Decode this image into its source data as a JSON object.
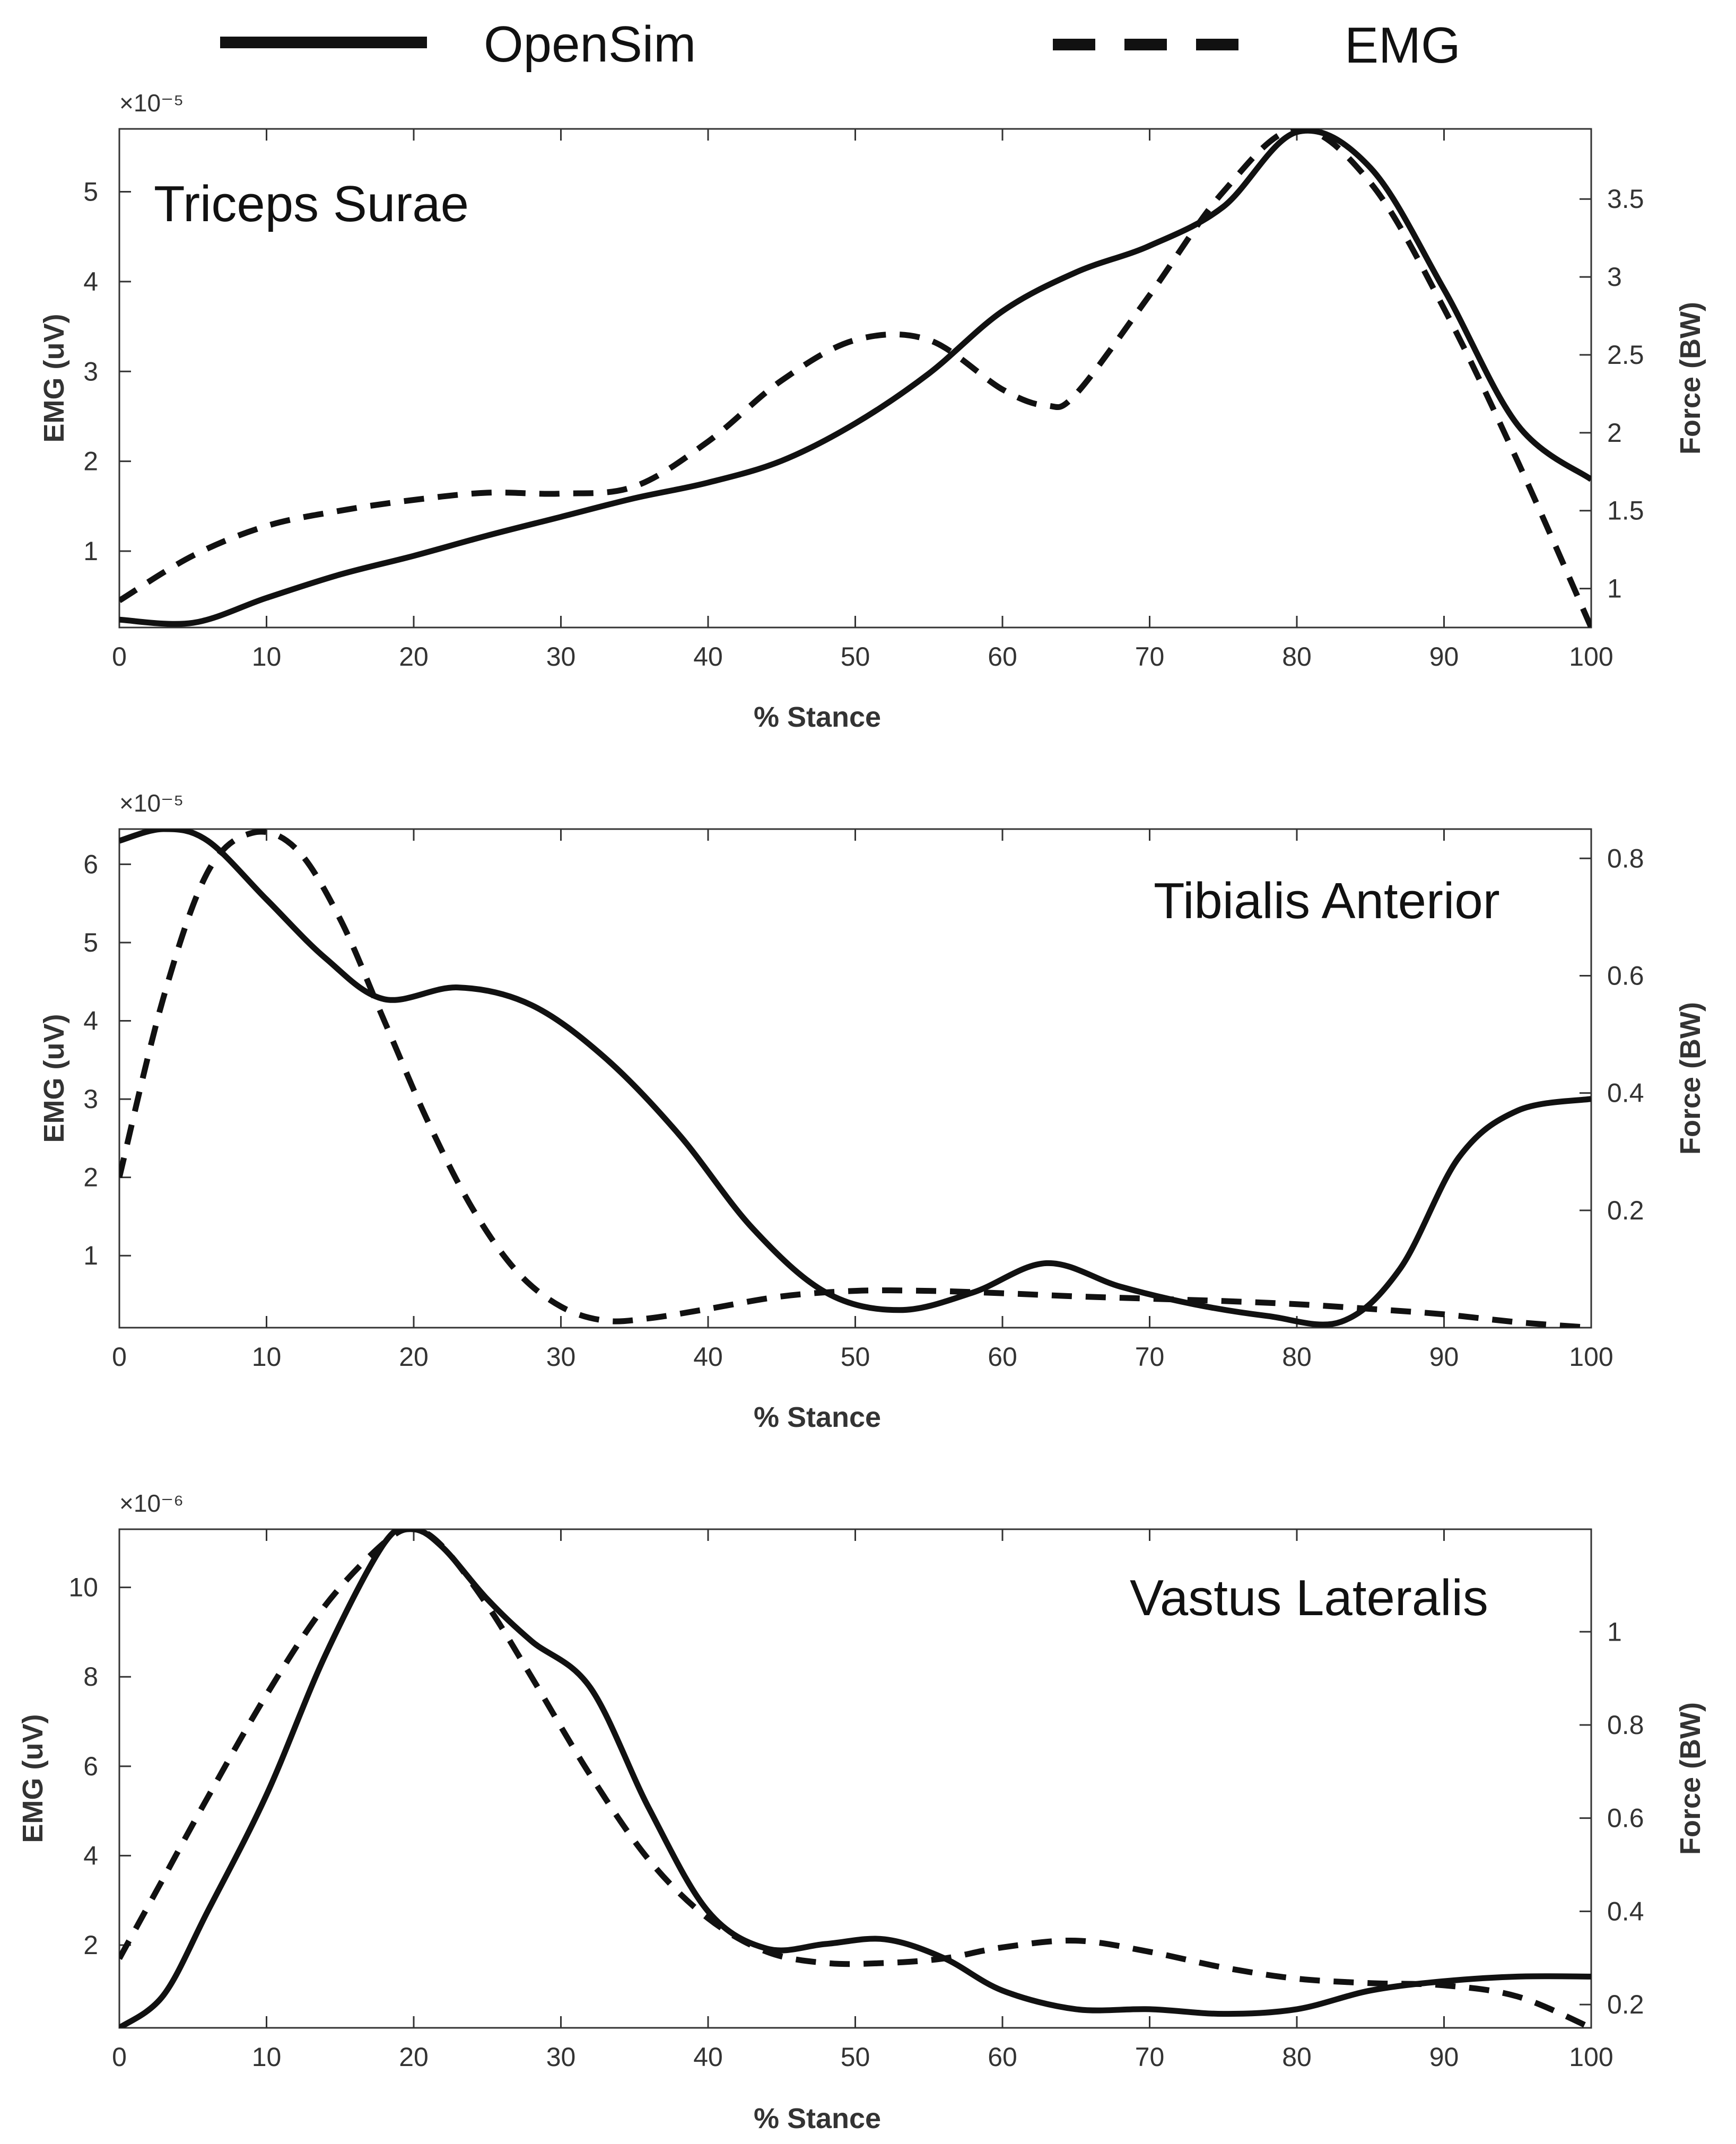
{
  "legend": [
    {
      "label": "OpenSim",
      "style": "solid"
    },
    {
      "label": "EMG",
      "style": "dashed"
    }
  ],
  "colors": {
    "line": "#111111",
    "axis": "#333333",
    "background": "#ffffff"
  },
  "chart_data": [
    {
      "type": "line",
      "title": "Triceps Surae",
      "xlabel": "% Stance",
      "ylabel": "EMG (uV)",
      "y2label": "Force (BW)",
      "exponent": "×10⁻⁵",
      "xlim": [
        0,
        100
      ],
      "ylim": [
        0.15,
        5.7
      ],
      "y2lim": [
        0.75,
        3.95
      ],
      "xticks": [
        0,
        10,
        20,
        30,
        40,
        50,
        60,
        70,
        80,
        90,
        100
      ],
      "yticks": [
        1,
        2,
        3,
        4,
        5
      ],
      "y2ticks": [
        1,
        1.5,
        2,
        2.5,
        3,
        3.5
      ],
      "series": [
        {
          "name": "OpenSim",
          "axis": "right",
          "style": "solid",
          "x": [
            0,
            5,
            10,
            15,
            20,
            25,
            30,
            35,
            40,
            45,
            50,
            55,
            60,
            65,
            70,
            75,
            80,
            85,
            90,
            95,
            100
          ],
          "y": [
            0.8,
            0.78,
            0.94,
            1.09,
            1.21,
            1.34,
            1.46,
            1.58,
            1.68,
            1.82,
            2.06,
            2.38,
            2.78,
            3.03,
            3.2,
            3.45,
            3.93,
            3.7,
            2.92,
            2.05,
            1.7
          ]
        },
        {
          "name": "EMG",
          "axis": "left",
          "style": "dashed",
          "x": [
            0,
            5,
            10,
            15,
            20,
            25,
            30,
            35,
            40,
            45,
            50,
            55,
            60,
            63,
            65,
            70,
            75,
            80,
            85,
            90,
            95,
            100
          ],
          "y": [
            0.45,
            0.95,
            1.28,
            1.45,
            1.57,
            1.65,
            1.64,
            1.72,
            2.22,
            2.9,
            3.35,
            3.35,
            2.8,
            2.62,
            2.75,
            3.85,
            5.0,
            5.7,
            5.1,
            3.7,
            2.0,
            0.15
          ]
        }
      ]
    },
    {
      "type": "line",
      "title": "Tibialis Anterior",
      "xlabel": "% Stance",
      "ylabel": "EMG (uV)",
      "y2label": "Force (BW)",
      "exponent": "×10⁻⁵",
      "xlim": [
        0,
        100
      ],
      "ylim": [
        0.08,
        6.45
      ],
      "y2lim": [
        0.0,
        0.85
      ],
      "xticks": [
        0,
        10,
        20,
        30,
        40,
        50,
        60,
        70,
        80,
        90,
        100
      ],
      "yticks": [
        1,
        2,
        3,
        4,
        5,
        6
      ],
      "y2ticks": [
        0.2,
        0.4,
        0.6,
        0.8
      ],
      "series": [
        {
          "name": "OpenSim",
          "axis": "right",
          "style": "solid",
          "x": [
            0,
            3,
            6,
            10,
            14,
            18,
            23,
            28,
            33,
            38,
            43,
            48,
            53,
            58,
            63,
            68,
            73,
            78,
            83,
            87,
            91,
            95,
            100
          ],
          "y": [
            0.83,
            0.85,
            0.83,
            0.73,
            0.63,
            0.56,
            0.58,
            0.55,
            0.46,
            0.33,
            0.17,
            0.06,
            0.03,
            0.06,
            0.11,
            0.07,
            0.04,
            0.02,
            0.01,
            0.1,
            0.29,
            0.37,
            0.39
          ]
        },
        {
          "name": "EMG",
          "axis": "left",
          "style": "dashed",
          "x": [
            0,
            3,
            6,
            9,
            12,
            15,
            18,
            21,
            24,
            27,
            30,
            33,
            36,
            40,
            45,
            50,
            55,
            60,
            65,
            70,
            75,
            80,
            85,
            90,
            95,
            100
          ],
          "y": [
            2.0,
            4.3,
            5.9,
            6.4,
            6.2,
            5.3,
            4.0,
            2.7,
            1.6,
            0.8,
            0.35,
            0.17,
            0.2,
            0.32,
            0.48,
            0.55,
            0.55,
            0.52,
            0.48,
            0.45,
            0.42,
            0.38,
            0.32,
            0.25,
            0.15,
            0.08
          ]
        }
      ]
    },
    {
      "type": "line",
      "title": "Vastus Lateralis",
      "xlabel": "% Stance",
      "ylabel": "EMG (uV)",
      "y2label": "Force (BW)",
      "exponent": "×10⁻⁶",
      "xlim": [
        0,
        100
      ],
      "ylim": [
        0.15,
        11.3
      ],
      "y2lim": [
        0.15,
        1.22
      ],
      "xticks": [
        0,
        10,
        20,
        30,
        40,
        50,
        60,
        70,
        80,
        90,
        100
      ],
      "yticks": [
        2,
        4,
        6,
        8,
        10
      ],
      "y2ticks": [
        0.2,
        0.4,
        0.6,
        0.8,
        1
      ],
      "series": [
        {
          "name": "OpenSim",
          "axis": "right",
          "style": "solid",
          "x": [
            0,
            3,
            6,
            10,
            14,
            18,
            20,
            22,
            25,
            28,
            32,
            36,
            40,
            44,
            48,
            52,
            56,
            60,
            65,
            70,
            75,
            80,
            85,
            90,
            95,
            100
          ],
          "y": [
            0.15,
            0.22,
            0.4,
            0.65,
            0.95,
            1.19,
            1.22,
            1.18,
            1.07,
            0.98,
            0.88,
            0.62,
            0.4,
            0.32,
            0.33,
            0.34,
            0.3,
            0.23,
            0.19,
            0.19,
            0.18,
            0.19,
            0.23,
            0.25,
            0.26,
            0.26
          ]
        },
        {
          "name": "EMG",
          "axis": "left",
          "style": "dashed",
          "x": [
            0,
            3,
            6,
            10,
            14,
            18,
            20,
            22,
            25,
            28,
            32,
            36,
            40,
            44,
            48,
            52,
            56,
            60,
            65,
            70,
            75,
            80,
            85,
            90,
            95,
            100
          ],
          "y": [
            1.7,
            3.5,
            5.3,
            7.6,
            9.6,
            11.0,
            11.3,
            10.9,
            9.6,
            8.0,
            5.8,
            3.9,
            2.6,
            1.85,
            1.6,
            1.6,
            1.7,
            1.95,
            2.1,
            1.85,
            1.5,
            1.25,
            1.15,
            1.1,
            0.85,
            0.15
          ]
        }
      ]
    }
  ]
}
